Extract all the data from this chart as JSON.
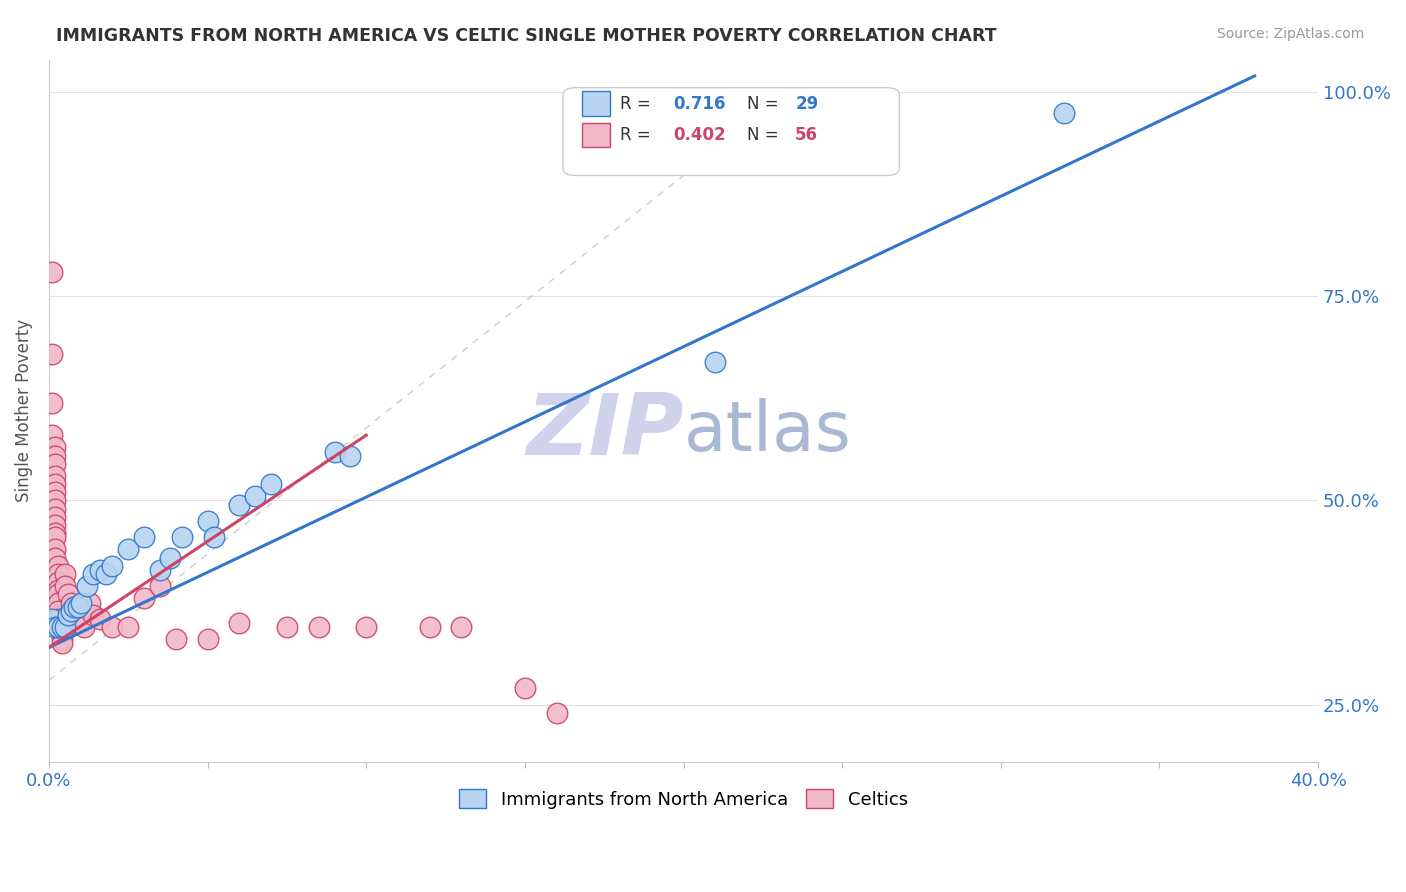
{
  "title": "IMMIGRANTS FROM NORTH AMERICA VS CELTIC SINGLE MOTHER POVERTY CORRELATION CHART",
  "source": "Source: ZipAtlas.com",
  "ylabel": "Single Mother Poverty",
  "legend_blue_label": "Immigrants from North America",
  "legend_pink_label": "Celtics",
  "blue_color": "#b8d4f0",
  "pink_color": "#f0b8c8",
  "blue_line_color": "#3377cc",
  "pink_line_color": "#cc4466",
  "diagonal_color": "#cccccc",
  "blue_scatter": [
    [
      0.001,
      0.355
    ],
    [
      0.002,
      0.345
    ],
    [
      0.003,
      0.345
    ],
    [
      0.004,
      0.345
    ],
    [
      0.005,
      0.345
    ],
    [
      0.006,
      0.36
    ],
    [
      0.007,
      0.365
    ],
    [
      0.008,
      0.37
    ],
    [
      0.009,
      0.37
    ],
    [
      0.01,
      0.375
    ],
    [
      0.012,
      0.395
    ],
    [
      0.014,
      0.41
    ],
    [
      0.016,
      0.415
    ],
    [
      0.018,
      0.41
    ],
    [
      0.02,
      0.42
    ],
    [
      0.025,
      0.44
    ],
    [
      0.03,
      0.455
    ],
    [
      0.035,
      0.415
    ],
    [
      0.038,
      0.43
    ],
    [
      0.042,
      0.455
    ],
    [
      0.05,
      0.475
    ],
    [
      0.052,
      0.455
    ],
    [
      0.06,
      0.495
    ],
    [
      0.065,
      0.505
    ],
    [
      0.07,
      0.52
    ],
    [
      0.09,
      0.56
    ],
    [
      0.095,
      0.555
    ],
    [
      0.21,
      0.67
    ],
    [
      0.32,
      0.975
    ]
  ],
  "pink_scatter": [
    [
      0.001,
      0.78
    ],
    [
      0.001,
      0.68
    ],
    [
      0.001,
      0.62
    ],
    [
      0.001,
      0.58
    ],
    [
      0.002,
      0.565
    ],
    [
      0.002,
      0.555
    ],
    [
      0.002,
      0.545
    ],
    [
      0.002,
      0.53
    ],
    [
      0.002,
      0.52
    ],
    [
      0.002,
      0.51
    ],
    [
      0.002,
      0.5
    ],
    [
      0.002,
      0.49
    ],
    [
      0.002,
      0.48
    ],
    [
      0.002,
      0.47
    ],
    [
      0.002,
      0.46
    ],
    [
      0.002,
      0.455
    ],
    [
      0.002,
      0.44
    ],
    [
      0.002,
      0.43
    ],
    [
      0.003,
      0.42
    ],
    [
      0.003,
      0.41
    ],
    [
      0.003,
      0.4
    ],
    [
      0.003,
      0.39
    ],
    [
      0.003,
      0.385
    ],
    [
      0.003,
      0.375
    ],
    [
      0.003,
      0.365
    ],
    [
      0.003,
      0.355
    ],
    [
      0.004,
      0.345
    ],
    [
      0.004,
      0.34
    ],
    [
      0.004,
      0.335
    ],
    [
      0.004,
      0.33
    ],
    [
      0.004,
      0.325
    ],
    [
      0.005,
      0.41
    ],
    [
      0.005,
      0.395
    ],
    [
      0.006,
      0.385
    ],
    [
      0.007,
      0.375
    ],
    [
      0.008,
      0.37
    ],
    [
      0.009,
      0.36
    ],
    [
      0.01,
      0.355
    ],
    [
      0.011,
      0.345
    ],
    [
      0.013,
      0.375
    ],
    [
      0.014,
      0.36
    ],
    [
      0.016,
      0.355
    ],
    [
      0.02,
      0.345
    ],
    [
      0.025,
      0.345
    ],
    [
      0.03,
      0.38
    ],
    [
      0.035,
      0.395
    ],
    [
      0.04,
      0.33
    ],
    [
      0.05,
      0.33
    ],
    [
      0.06,
      0.35
    ],
    [
      0.075,
      0.345
    ],
    [
      0.085,
      0.345
    ],
    [
      0.1,
      0.345
    ],
    [
      0.12,
      0.345
    ],
    [
      0.13,
      0.345
    ],
    [
      0.15,
      0.27
    ],
    [
      0.16,
      0.24
    ]
  ],
  "xlim": [
    0.0,
    0.4
  ],
  "ylim": [
    0.18,
    1.04
  ],
  "ypct_ticks": [
    0.25,
    0.5,
    0.75,
    1.0
  ],
  "ytick_labels": [
    "25.0%",
    "50.0%",
    "75.0%",
    "100.0%"
  ],
  "xtick_positions": [
    0.0,
    0.05,
    0.1,
    0.15,
    0.2,
    0.25,
    0.3,
    0.35,
    0.4
  ],
  "watermark_zip": "ZIP",
  "watermark_atlas": "atlas"
}
